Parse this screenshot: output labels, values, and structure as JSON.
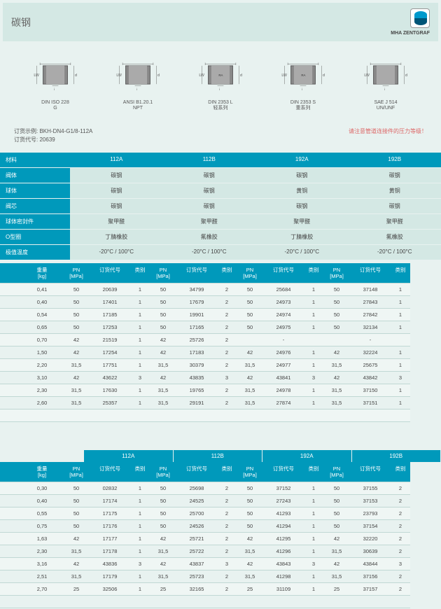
{
  "header": {
    "title": "碳钢",
    "logo_text": "MHA ZENTGRAF"
  },
  "diagrams": [
    {
      "label1": "DIN ISO 228",
      "label2": "G"
    },
    {
      "label1": "ANSI B1.20.1",
      "label2": "NPT"
    },
    {
      "label1": "DIN 2353 L",
      "label2": "轻系列"
    },
    {
      "label1": "DIN 2353 S",
      "label2": "重系列"
    },
    {
      "label1": "SAE J 514",
      "label2": "UN/UNF"
    }
  ],
  "order": {
    "example_label": "订货示例:",
    "example_value": "BKH-DN4-G1/8-112A",
    "code_label": "订货代号:",
    "code_value": "20639",
    "note": "请注意管道连接件的压力等级！"
  },
  "material": {
    "title": "材料",
    "cols": [
      "112A",
      "112B",
      "192A",
      "192B"
    ],
    "rows": [
      {
        "label": "阀体",
        "vals": [
          "碳钢",
          "碳钢",
          "碳钢",
          "碳钢"
        ]
      },
      {
        "label": "球体",
        "vals": [
          "碳钢",
          "碳钢",
          "黄铜",
          "黄铜"
        ]
      },
      {
        "label": "阀芯",
        "vals": [
          "碳钢",
          "碳钢",
          "碳钢",
          "碳钢"
        ]
      },
      {
        "label": "球体密封件",
        "vals": [
          "聚甲醛",
          "聚甲醛",
          "聚甲醛",
          "聚甲醛"
        ]
      },
      {
        "label": "O型圈",
        "vals": [
          "丁腈橡胶",
          "氟橡胶",
          "丁腈橡胶",
          "氟橡胶"
        ]
      },
      {
        "label": "极值温度",
        "vals": [
          "-20°C / 100°C",
          "-20°C / 100°C",
          "-20°C / 100°C",
          "-20°C / 100°C"
        ]
      }
    ]
  },
  "table_headers": {
    "weight": "重量\n[kg]",
    "pn": "PN\n[MPa]",
    "order": "订货代号",
    "cat": "类别"
  },
  "groups": [
    "112A",
    "112B",
    "192A",
    "192B"
  ],
  "table1": [
    {
      "w": "0,41",
      "d": [
        [
          "50",
          "20639",
          "1"
        ],
        [
          "50",
          "34799",
          "2"
        ],
        [
          "50",
          "25684",
          "1"
        ],
        [
          "50",
          "37148",
          "1"
        ]
      ]
    },
    {
      "w": "0,40",
      "d": [
        [
          "50",
          "17401",
          "1"
        ],
        [
          "50",
          "17679",
          "2"
        ],
        [
          "50",
          "24973",
          "1"
        ],
        [
          "50",
          "27843",
          "1"
        ]
      ]
    },
    {
      "w": "0,54",
      "d": [
        [
          "50",
          "17185",
          "1"
        ],
        [
          "50",
          "19901",
          "2"
        ],
        [
          "50",
          "24974",
          "1"
        ],
        [
          "50",
          "27842",
          "1"
        ]
      ]
    },
    {
      "w": "0,65",
      "d": [
        [
          "50",
          "17253",
          "1"
        ],
        [
          "50",
          "17165",
          "2"
        ],
        [
          "50",
          "24975",
          "1"
        ],
        [
          "50",
          "32134",
          "1"
        ]
      ]
    },
    {
      "w": "0,70",
      "d": [
        [
          "42",
          "21519",
          "1"
        ],
        [
          "42",
          "25726",
          "2"
        ],
        [
          "",
          "-",
          ""
        ],
        [
          "",
          "-",
          ""
        ]
      ]
    },
    {
      "w": "1,50",
      "d": [
        [
          "42",
          "17254",
          "1"
        ],
        [
          "42",
          "17183",
          "2"
        ],
        [
          "42",
          "24976",
          "1"
        ],
        [
          "42",
          "32224",
          "1"
        ]
      ]
    },
    {
      "w": "2,20",
      "d": [
        [
          "31,5",
          "17751",
          "1"
        ],
        [
          "31,5",
          "30379",
          "2"
        ],
        [
          "31,5",
          "24977",
          "1"
        ],
        [
          "31,5",
          "25675",
          "1"
        ]
      ]
    },
    {
      "w": "3,10",
      "d": [
        [
          "42",
          "43622",
          "3"
        ],
        [
          "42",
          "43835",
          "3"
        ],
        [
          "42",
          "43841",
          "3"
        ],
        [
          "42",
          "43842",
          "3"
        ]
      ]
    },
    {
      "w": "2,30",
      "d": [
        [
          "31,5",
          "17630",
          "1"
        ],
        [
          "31,5",
          "19765",
          "2"
        ],
        [
          "31,5",
          "24978",
          "1"
        ],
        [
          "31,5",
          "37150",
          "1"
        ]
      ]
    },
    {
      "w": "2,60",
      "d": [
        [
          "31,5",
          "25357",
          "1"
        ],
        [
          "31,5",
          "29191",
          "2"
        ],
        [
          "31,5",
          "27874",
          "1"
        ],
        [
          "31,5",
          "37151",
          "1"
        ]
      ]
    }
  ],
  "table2": [
    {
      "w": "0,30",
      "d": [
        [
          "50",
          "02832",
          "1"
        ],
        [
          "50",
          "25698",
          "2"
        ],
        [
          "50",
          "37152",
          "1"
        ],
        [
          "50",
          "37155",
          "2"
        ]
      ]
    },
    {
      "w": "0,40",
      "d": [
        [
          "50",
          "17174",
          "1"
        ],
        [
          "50",
          "24525",
          "2"
        ],
        [
          "50",
          "27243",
          "1"
        ],
        [
          "50",
          "37153",
          "2"
        ]
      ]
    },
    {
      "w": "0,55",
      "d": [
        [
          "50",
          "17175",
          "1"
        ],
        [
          "50",
          "25700",
          "2"
        ],
        [
          "50",
          "41293",
          "1"
        ],
        [
          "50",
          "23793",
          "2"
        ]
      ]
    },
    {
      "w": "0,75",
      "d": [
        [
          "50",
          "17176",
          "1"
        ],
        [
          "50",
          "24526",
          "2"
        ],
        [
          "50",
          "41294",
          "1"
        ],
        [
          "50",
          "37154",
          "2"
        ]
      ]
    },
    {
      "w": "1,63",
      "d": [
        [
          "42",
          "17177",
          "1"
        ],
        [
          "42",
          "25721",
          "2"
        ],
        [
          "42",
          "41295",
          "1"
        ],
        [
          "42",
          "32220",
          "2"
        ]
      ]
    },
    {
      "w": "2,30",
      "d": [
        [
          "31,5",
          "17178",
          "1"
        ],
        [
          "31,5",
          "25722",
          "2"
        ],
        [
          "31,5",
          "41296",
          "1"
        ],
        [
          "31,5",
          "30639",
          "2"
        ]
      ]
    },
    {
      "w": "3,16",
      "d": [
        [
          "42",
          "43836",
          "3"
        ],
        [
          "42",
          "43837",
          "3"
        ],
        [
          "42",
          "43843",
          "3"
        ],
        [
          "42",
          "43844",
          "3"
        ]
      ]
    },
    {
      "w": "2,51",
      "d": [
        [
          "31,5",
          "17179",
          "1"
        ],
        [
          "31,5",
          "25723",
          "2"
        ],
        [
          "31,5",
          "41298",
          "1"
        ],
        [
          "31,5",
          "37156",
          "2"
        ]
      ]
    },
    {
      "w": "2,70",
      "d": [
        [
          "25",
          "32506",
          "1"
        ],
        [
          "25",
          "32165",
          "2"
        ],
        [
          "25",
          "31109",
          "1"
        ],
        [
          "25",
          "37157",
          "2"
        ]
      ]
    }
  ],
  "colors": {
    "primary": "#0099bb",
    "bg": "#e8f2f0",
    "section_bg": "#d4e8e4"
  }
}
